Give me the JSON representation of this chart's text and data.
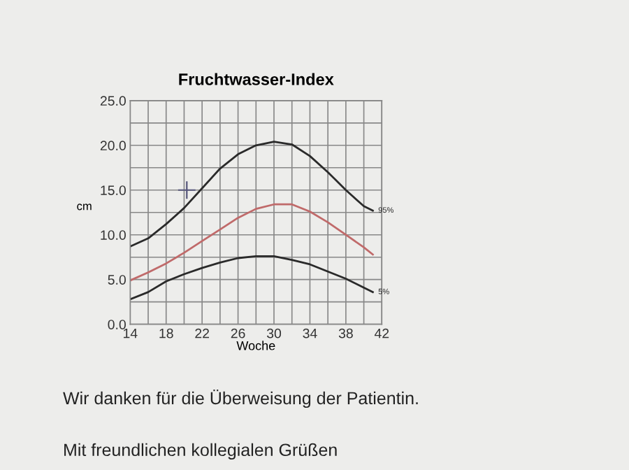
{
  "chart_data": {
    "type": "line",
    "title": "Fruchtwasser-Index",
    "xlabel": "Woche",
    "ylabel": "cm",
    "xlim": [
      14,
      42
    ],
    "ylim": [
      0,
      25
    ],
    "xticks": [
      14,
      {
        "value": 16,
        "label": null
      },
      18,
      {
        "value": 20,
        "label": null
      },
      22,
      {
        "value": 24,
        "label": null
      },
      26,
      {
        "value": 28,
        "label": null
      },
      30,
      {
        "value": 32,
        "label": null
      },
      34,
      {
        "value": 36,
        "label": null
      },
      38,
      {
        "value": 40,
        "label": null
      },
      42
    ],
    "yticks": [
      {
        "value": 0,
        "label": "0.0"
      },
      {
        "value": 2.5,
        "label": null
      },
      {
        "value": 5,
        "label": "5.0"
      },
      {
        "value": 7.5,
        "label": null
      },
      {
        "value": 10,
        "label": "10.0"
      },
      {
        "value": 12.5,
        "label": null
      },
      {
        "value": 15,
        "label": "15.0"
      },
      {
        "value": 17.5,
        "label": null
      },
      {
        "value": 20,
        "label": "20.0"
      },
      {
        "value": 22.5,
        "label": null
      },
      {
        "value": 25,
        "label": "25.0"
      }
    ],
    "grid": true,
    "legend": false,
    "marker": "none",
    "x": [
      14,
      16,
      18,
      20,
      22,
      24,
      26,
      28,
      30,
      32,
      34,
      36,
      38,
      40,
      41
    ],
    "series": [
      {
        "name": "95%",
        "color": "#2a2a2a",
        "values": [
          8.7,
          9.6,
          11.2,
          13.0,
          15.2,
          17.4,
          19.0,
          20.0,
          20.4,
          20.1,
          18.8,
          17.0,
          15.0,
          13.2,
          12.7
        ]
      },
      {
        "color": "#c06a6a",
        "values": [
          4.9,
          5.8,
          6.8,
          8.0,
          9.3,
          10.6,
          11.9,
          12.9,
          13.4,
          13.4,
          12.6,
          11.4,
          10.0,
          8.6,
          7.8
        ]
      },
      {
        "name": "5%",
        "color": "#2a2a2a",
        "values": [
          2.8,
          3.6,
          4.8,
          5.6,
          6.3,
          6.9,
          7.4,
          7.6,
          7.6,
          7.2,
          6.7,
          5.9,
          5.1,
          4.1,
          3.6
        ]
      },
      {
        "type": "scatter",
        "marker": "cross",
        "color": "#55557a",
        "x": [
          20.3
        ],
        "values": [
          15.0
        ]
      }
    ],
    "annotations": [
      "Wir danken für die Überweisung der Patientin.",
      "Mit freundlichen kollegialen Grüßen"
    ]
  }
}
